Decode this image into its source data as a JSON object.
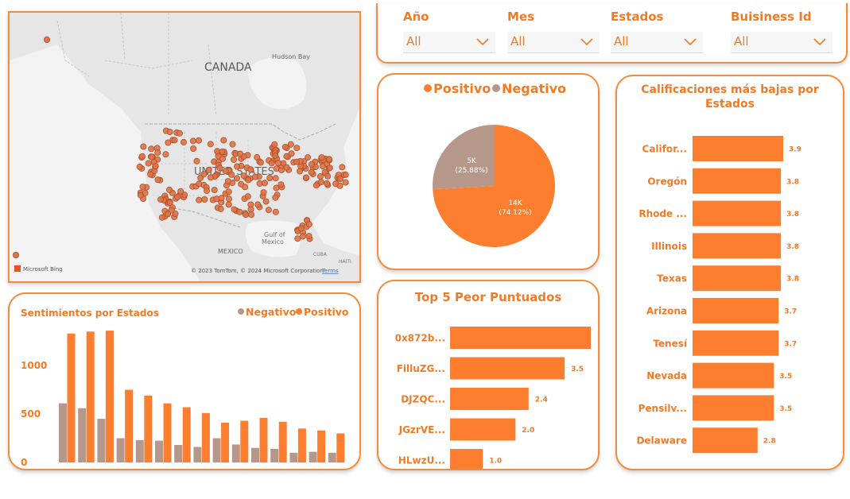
{
  "map": {
    "label_canada": "CANADA",
    "label_hudson": "Hudson Bay",
    "label_us": "UNITED STATES",
    "label_mexico": "MEXICO",
    "label_gulf1": "Gulf of",
    "label_gulf2": "Mexico",
    "label_cuba": "CUBA",
    "label_haiti": "HAITI",
    "brand": "Microsoft Bing",
    "copyright": "© 2023 TomTom, © 2024 Microsoft Corporation",
    "terms": "Terms",
    "colors": {
      "dot": "#e07245",
      "dot_stroke": "#a8502a",
      "land": "#e4e4e4",
      "water": "#f4f4f4"
    }
  },
  "filters": [
    {
      "label": "Año",
      "value": "All"
    },
    {
      "label": "Mes",
      "value": "All"
    },
    {
      "label": "Estados",
      "value": "All"
    },
    {
      "label": "Buisiness Id",
      "value": "All"
    }
  ],
  "pie": {
    "legend": [
      {
        "name": "Positivo",
        "color": "#fd7e2e"
      },
      {
        "name": "Negativo",
        "color": "#b6988a"
      }
    ]
  },
  "lowest": {
    "title_line1": "Calificaciones más bajas por",
    "title_line2": "Estados"
  },
  "top5": {
    "title": "Top 5 Peor Puntuados"
  },
  "sentiment": {
    "title": "Sentimientos por Estados",
    "legend_neg": "Negativo",
    "legend_pos": "Positivo"
  },
  "chart_data": [
    {
      "type": "pie",
      "slices": [
        {
          "name": "Positivo",
          "value": 14000,
          "label": "14K",
          "pct_label": "(74.12%)",
          "percent": 74.12,
          "color": "#fd7e2e"
        },
        {
          "name": "Negativo",
          "value": 5000,
          "label": "5K",
          "pct_label": "(25.88%)",
          "percent": 25.88,
          "color": "#b6988a"
        }
      ],
      "legend_placement": "top"
    },
    {
      "type": "bar",
      "orientation": "horizontal",
      "title": "Calificaciones más bajas por Estados",
      "categories": [
        "Califor...",
        "Oregón",
        "Rhode ...",
        "Illinois",
        "Texas",
        "Arizona",
        "Tenesí",
        "Nevada",
        "Pensilv...",
        "Delaware"
      ],
      "values": [
        3.9,
        3.8,
        3.8,
        3.8,
        3.8,
        3.7,
        3.7,
        3.5,
        3.5,
        2.8
      ],
      "value_labels": [
        "3.9",
        "3.8",
        "3.8",
        "3.8",
        "3.8",
        "3.7",
        "3.7",
        "3.5",
        "3.5",
        "2.8"
      ],
      "color": "#fd7e2e"
    },
    {
      "type": "bar",
      "orientation": "horizontal",
      "title": "Top 5 Peor Puntuados",
      "categories": [
        "0x872b...",
        "FilluZG...",
        "DJZQC...",
        "JGzrVE...",
        "HLwzU..."
      ],
      "values": [
        4.3,
        3.5,
        2.4,
        2.0,
        1.0
      ],
      "value_labels": [
        "",
        "3.5",
        "2.4",
        "2.0",
        "1.0"
      ],
      "color": "#fd7e2e"
    },
    {
      "type": "bar",
      "title": "Sentimientos por Estados",
      "y_ticks": [
        "0",
        "500",
        "1000"
      ],
      "ylim": [
        0,
        1400
      ],
      "legend_placement": "top-right",
      "series": [
        {
          "name": "Negativo",
          "color": "#b6988a",
          "values": [
            610,
            560,
            450,
            250,
            230,
            225,
            180,
            160,
            250,
            185,
            150,
            140,
            100,
            110,
            100
          ]
        },
        {
          "name": "Positivo",
          "color": "#fd7e2e",
          "values": [
            1330,
            1350,
            1360,
            750,
            690,
            610,
            570,
            510,
            410,
            430,
            460,
            420,
            350,
            330,
            300
          ]
        }
      ]
    }
  ]
}
